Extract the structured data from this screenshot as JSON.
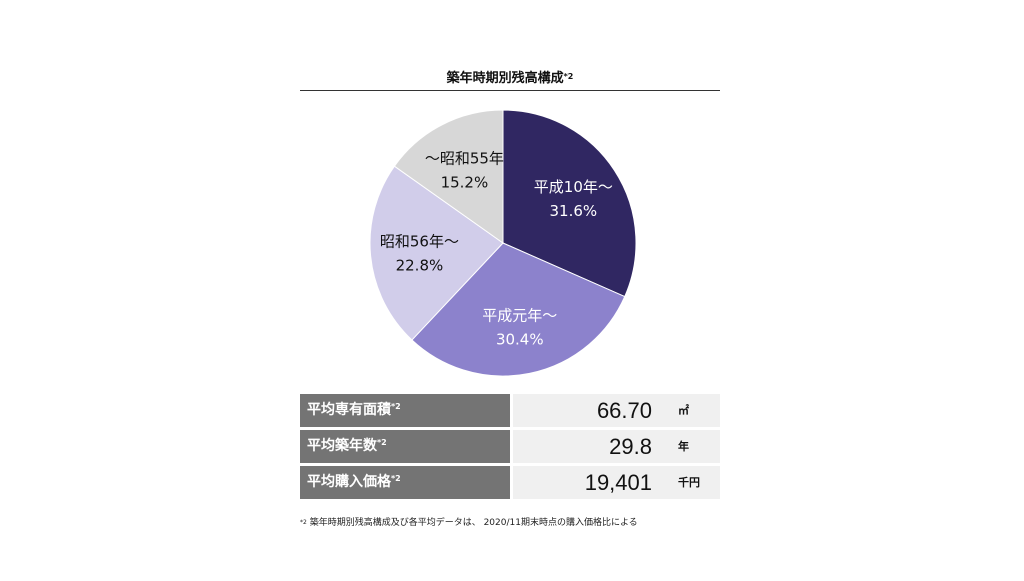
{
  "chart_data": {
    "type": "pie",
    "title": "築年時期別残高構成",
    "title_note": "*2",
    "slices": [
      {
        "label": "平成10年〜",
        "value": 31.6,
        "value_label": "31.6%",
        "color": "#302762",
        "text_color": "#ffffff"
      },
      {
        "label": "平成元年〜",
        "value": 30.4,
        "value_label": "30.4%",
        "color": "#8c82cc",
        "text_color": "#ffffff"
      },
      {
        "label": "昭和56年〜",
        "value": 22.8,
        "value_label": "22.8%",
        "color": "#d1cdea",
        "text_color": "#111111"
      },
      {
        "label": "〜昭和55年",
        "value": 15.2,
        "value_label": "15.2%",
        "color": "#d7d7d7",
        "text_color": "#111111"
      }
    ]
  },
  "stats": [
    {
      "label": "平均専有面積",
      "note": "*2",
      "value": "66.70",
      "unit": "㎡"
    },
    {
      "label": "平均築年数",
      "note": "*2",
      "value": "29.8",
      "unit": "年"
    },
    {
      "label": "平均購入価格",
      "note": "*2",
      "value": "19,401",
      "unit": "千円"
    }
  ],
  "footnote": {
    "mark": "*2",
    "text": "築年時期別残高構成及び各平均データは、 2020/11期末時点の購入価格比による"
  }
}
